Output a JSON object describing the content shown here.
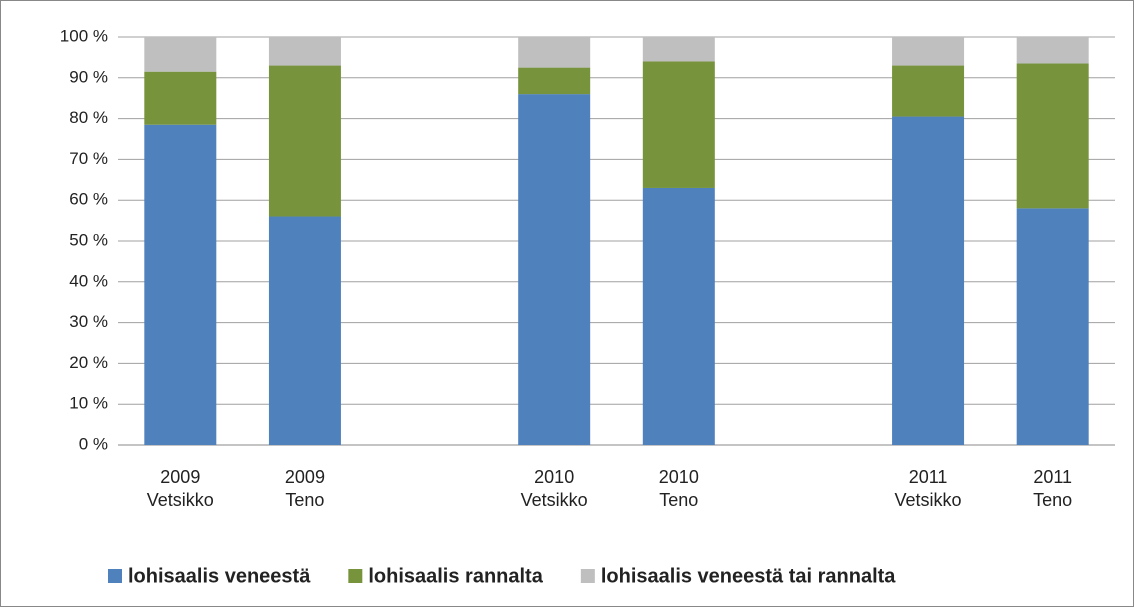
{
  "chart_data": {
    "type": "stacked_bar",
    "categories": [
      "2009\nVetsikko",
      "2009\nTeno",
      null,
      "2010\nVetsikko",
      "2010\nTeno",
      null,
      "2011\nVetsikko",
      "2011\nTeno"
    ],
    "series": [
      {
        "name": "lohisaalis veneestä",
        "color": "#4f81bd",
        "values": [
          78.5,
          56,
          null,
          86,
          63,
          null,
          80.5,
          58
        ]
      },
      {
        "name": "lohisaalis rannalta",
        "color": "#77933c",
        "values": [
          13,
          37,
          null,
          6.5,
          31,
          null,
          12.5,
          35.5
        ]
      },
      {
        "name": "lohisaalis veneestä tai rannalta",
        "color": "#bfbfbf",
        "values": [
          8.5,
          7,
          null,
          7.5,
          6,
          null,
          7,
          6.5
        ]
      }
    ],
    "ylim": [
      0,
      100
    ],
    "yticks": [
      {
        "value": 0,
        "label": "0 %"
      },
      {
        "value": 10,
        "label": "10 %"
      },
      {
        "value": 20,
        "label": "20 %"
      },
      {
        "value": 30,
        "label": "30 %"
      },
      {
        "value": 40,
        "label": "40 %"
      },
      {
        "value": 50,
        "label": "50 %"
      },
      {
        "value": 60,
        "label": "60 %"
      },
      {
        "value": 70,
        "label": "70 %"
      },
      {
        "value": 80,
        "label": "80 %"
      },
      {
        "value": 90,
        "label": "90 %"
      },
      {
        "value": 100,
        "label": "100 %"
      }
    ],
    "grid": true,
    "legend": "bottom"
  }
}
